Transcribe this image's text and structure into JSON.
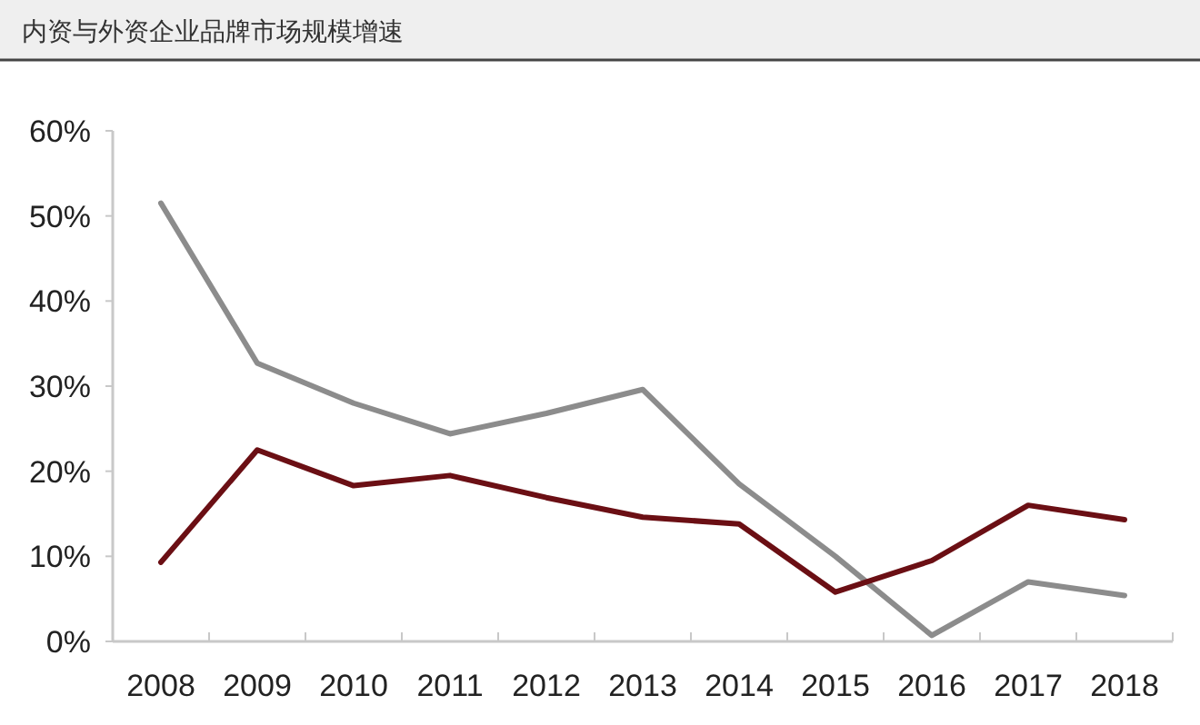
{
  "chart_data": {
    "type": "line",
    "title": "内资与外资企业品牌市场规模增速",
    "categories": [
      "2008",
      "2009",
      "2010",
      "2011",
      "2012",
      "2013",
      "2014",
      "2015",
      "2016",
      "2017",
      "2018"
    ],
    "series": [
      {
        "color": "#8c8c8c",
        "values": [
          51.5,
          32.7,
          28,
          24.4,
          26.8,
          29.6,
          18.5,
          10,
          0.7,
          7,
          5.4
        ]
      },
      {
        "color": "#6b0f14",
        "values": [
          9.3,
          22.5,
          18.3,
          19.5,
          16.9,
          14.6,
          13.8,
          5.8,
          9.5,
          16,
          14.3
        ]
      }
    ],
    "ylim": [
      0,
      60
    ],
    "yticks": [
      {
        "value": 0,
        "label": "0%"
      },
      {
        "value": 10,
        "label": "10%"
      },
      {
        "value": 20,
        "label": "20%"
      },
      {
        "value": 30,
        "label": "30%"
      },
      {
        "value": 40,
        "label": "40%"
      },
      {
        "value": 50,
        "label": "50%"
      },
      {
        "value": 60,
        "label": "60%"
      }
    ],
    "grid": false,
    "marker": "none",
    "line_style": "solid"
  }
}
